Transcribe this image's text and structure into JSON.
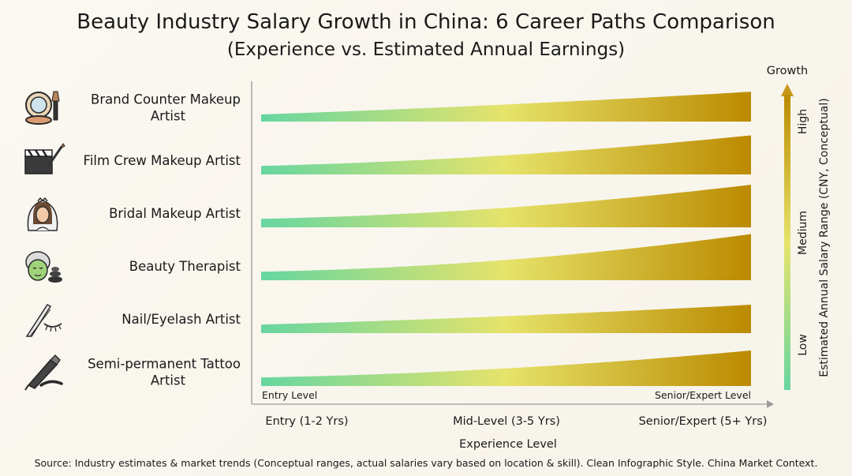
{
  "chart_data": {
    "type": "area",
    "title": "Beauty Industry Salary Growth in China: 6 Career Paths Comparison",
    "subtitle": "(Experience vs. Estimated Annual Earnings)",
    "xlabel": "Experience Level",
    "ylabel": "Estimated Annual Salary Range (CNY, Conceptual)",
    "x_ticks": [
      "Entry (1-2 Yrs)",
      "Mid-Level (3-5 Yrs)",
      "Senior/Expert (5+ Yrs)"
    ],
    "x_range_labels": {
      "start": "Entry Level",
      "end": "Senior/Expert Level"
    },
    "y_scale": {
      "title": "Growth",
      "levels": [
        "Low",
        "Medium",
        "High"
      ]
    },
    "x_domain": [
      0,
      1
    ],
    "relative_growth_max": 1,
    "colors": {
      "low": "#66d6a0",
      "mid": "#e6e36a",
      "high": "#bb8a00"
    },
    "series": [
      {
        "name": "Brand Counter Makeup Artist",
        "label_lines": [
          "Brand Counter Makeup",
          "Artist"
        ],
        "icon": "makeup-mirror-brush-icon",
        "start": 0.1,
        "end": 0.42,
        "curve": 0.25
      },
      {
        "name": "Film Crew Makeup Artist",
        "label_lines": [
          "Film Crew Makeup Artist"
        ],
        "icon": "clapperboard-brush-icon",
        "start": 0.12,
        "end": 0.55,
        "curve": 0.6
      },
      {
        "name": "Bridal Makeup Artist",
        "label_lines": [
          "Bridal Makeup Artist"
        ],
        "icon": "bride-veil-icon",
        "start": 0.12,
        "end": 0.6,
        "curve": 0.7
      },
      {
        "name": "Beauty Therapist",
        "label_lines": [
          "Beauty Therapist"
        ],
        "icon": "face-mask-stones-icon",
        "start": 0.12,
        "end": 0.65,
        "curve": 0.75
      },
      {
        "name": "Nail/Eyelash Artist",
        "label_lines": [
          "Nail/Eyelash Artist"
        ],
        "icon": "tweezers-eyelash-icon",
        "start": 0.12,
        "end": 0.4,
        "curve": 0.3
      },
      {
        "name": "Semi-permanent Tattoo Artist",
        "label_lines": [
          "Semi-permanent Tattoo",
          "Artist"
        ],
        "icon": "tattoo-pen-brow-icon",
        "start": 0.12,
        "end": 0.5,
        "curve": 0.65
      }
    ],
    "legend": "none",
    "grid": false
  },
  "footer": "Source: Industry estimates & market trends (Conceptual ranges, actual salaries vary based on location & skill). Clean Infographic Style. China Market Context."
}
